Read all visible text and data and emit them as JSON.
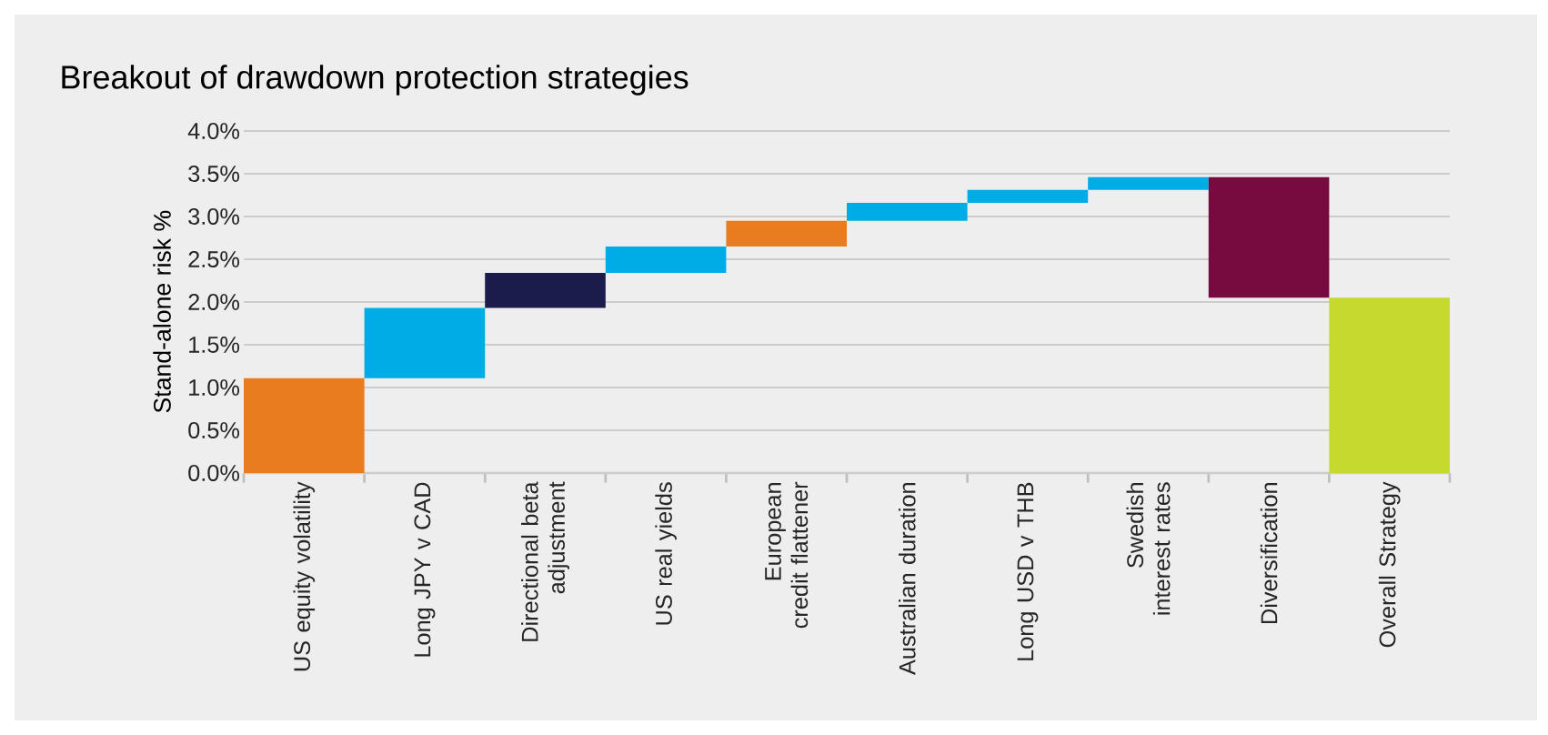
{
  "chart_data": {
    "type": "bar",
    "title": "Breakout of drawdown protection strategies",
    "ylabel": "Stand-alone risk %",
    "categories": [
      "US equity volatility",
      "Long JPY v CAD",
      "Directional beta adjustment",
      "US real yields",
      "European credit flattener",
      "Australian duration",
      "Long USD v THB",
      "Swedish interest rates",
      "Diversification",
      "Overall Strategy"
    ],
    "base": [
      0,
      1.11,
      1.93,
      2.34,
      2.65,
      2.95,
      3.16,
      3.31,
      3.46,
      0
    ],
    "values": [
      1.11,
      0.82,
      0.41,
      0.31,
      0.3,
      0.21,
      0.15,
      0.15,
      -1.41,
      2.05
    ],
    "colors": [
      "#e87c1e",
      "#00ace6",
      "#1c1c4c",
      "#00ace6",
      "#e87c1e",
      "#00ace6",
      "#00ace6",
      "#00ace6",
      "#770a3f",
      "#c6d92e"
    ],
    "ylim": [
      0,
      4
    ],
    "yticks": [
      {
        "value": 0,
        "label": "0.0%"
      },
      {
        "value": 0.5,
        "label": "0.5%"
      },
      {
        "value": 1,
        "label": "1.0%"
      },
      {
        "value": 1.5,
        "label": "1.5%"
      },
      {
        "value": 2,
        "label": "2.0%"
      },
      {
        "value": 2.5,
        "label": "2.5%"
      },
      {
        "value": 3,
        "label": "3.0%"
      },
      {
        "value": 3.5,
        "label": "3.5%"
      },
      {
        "value": 4,
        "label": "4.0%"
      }
    ],
    "grid": "y"
  }
}
